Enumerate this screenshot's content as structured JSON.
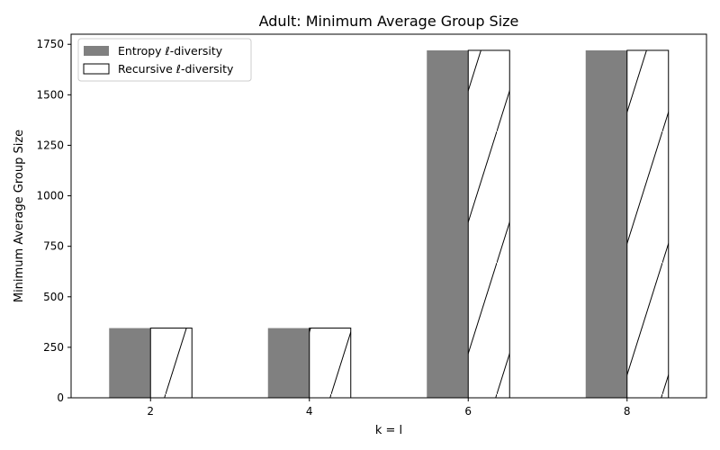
{
  "chart_data": {
    "type": "bar",
    "title": "Adult: Minimum Average Group Size",
    "xlabel": "k = l",
    "ylabel": "Minimum Average Group Size",
    "categories": [
      "2",
      "4",
      "6",
      "8"
    ],
    "series": [
      {
        "name": "Entropy ℓ-diversity",
        "values": [
          345,
          345,
          1720,
          1720
        ],
        "fill": "#808080",
        "hatch": false
      },
      {
        "name": "Recursive ℓ-diversity",
        "values": [
          345,
          345,
          1720,
          1720
        ],
        "fill": "#ffffff",
        "hatch": true
      }
    ],
    "ylim": [
      0,
      1800
    ],
    "yticks": [
      0,
      250,
      500,
      750,
      1000,
      1250,
      1500,
      1750
    ],
    "grid": false,
    "legend_position": "top-left"
  }
}
